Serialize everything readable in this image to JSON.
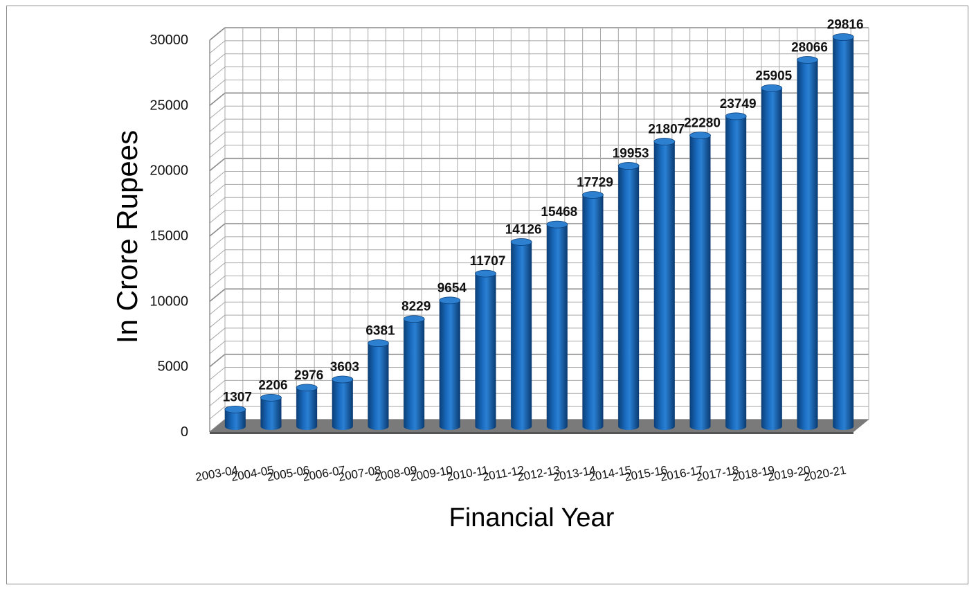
{
  "chart_data": {
    "type": "bar",
    "title": "",
    "xlabel": "Financial Year",
    "ylabel": "In Crore Rupees",
    "categories": [
      "2003-04",
      "2004-05",
      "2005-06",
      "2006-07",
      "2007-08",
      "2008-09",
      "2009-10",
      "2010-11",
      "2011-12",
      "2012-13",
      "2013-14",
      "2014-15",
      "2015-16",
      "2016-17",
      "2017-18",
      "2018-19",
      "2019-20",
      "2020-21"
    ],
    "values": [
      1307,
      2206,
      2976,
      3603,
      6381,
      8229,
      9654,
      11707,
      14126,
      15468,
      17729,
      19953,
      21807,
      22280,
      23749,
      25905,
      28066,
      29816
    ],
    "data_labels": [
      "1307",
      "2206",
      "2976",
      "3603",
      "6381",
      "8229",
      "9654",
      "11707",
      "14126",
      "15468",
      "17729",
      "19953",
      "21807",
      "22280",
      "23749",
      "25905",
      "28066",
      "29816"
    ],
    "y_ticks": [
      "0",
      "5000",
      "10000",
      "15000",
      "20000",
      "25000",
      "30000"
    ],
    "ylim": [
      0,
      30000
    ],
    "grid": true,
    "style": "3d-cylinder",
    "bar_color": "#1460a8"
  }
}
